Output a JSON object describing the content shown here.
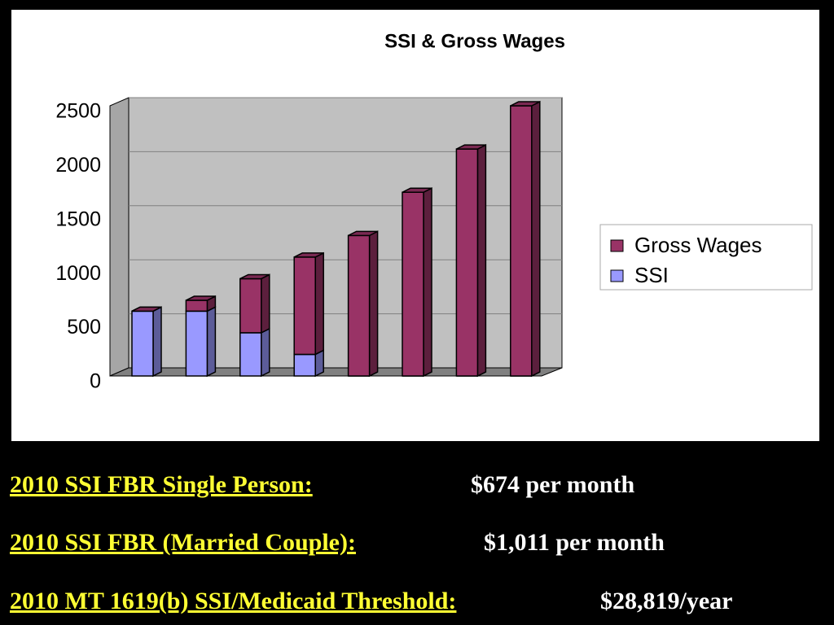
{
  "chart_data": {
    "type": "stacked_bar_3d",
    "title": "SSI & Gross Wages",
    "categories": [
      null,
      null,
      null,
      null,
      null,
      null,
      null,
      null
    ],
    "series": [
      {
        "name": "SSI",
        "color": "#9999ff",
        "values": [
          600,
          600,
          400,
          200,
          0,
          0,
          0,
          0
        ]
      },
      {
        "name": "Gross Wages",
        "color": "#993366",
        "values": [
          0,
          100,
          500,
          900,
          1300,
          1700,
          2100,
          2500
        ]
      }
    ],
    "ylim": [
      0,
      2500
    ],
    "yticks": [
      0,
      500,
      1000,
      1500,
      2000,
      2500
    ],
    "grid": true,
    "legend": "right"
  },
  "notes": [
    {
      "label": "2010 SSI FBR Single Person:",
      "value": "$674 per month"
    },
    {
      "label": "2010 SSI FBR (Married Couple):",
      "value": "$1,011 per month"
    },
    {
      "label": "2010 MT 1619(b) SSI/Medicaid Threshold:",
      "value": "$28,819/year"
    }
  ]
}
